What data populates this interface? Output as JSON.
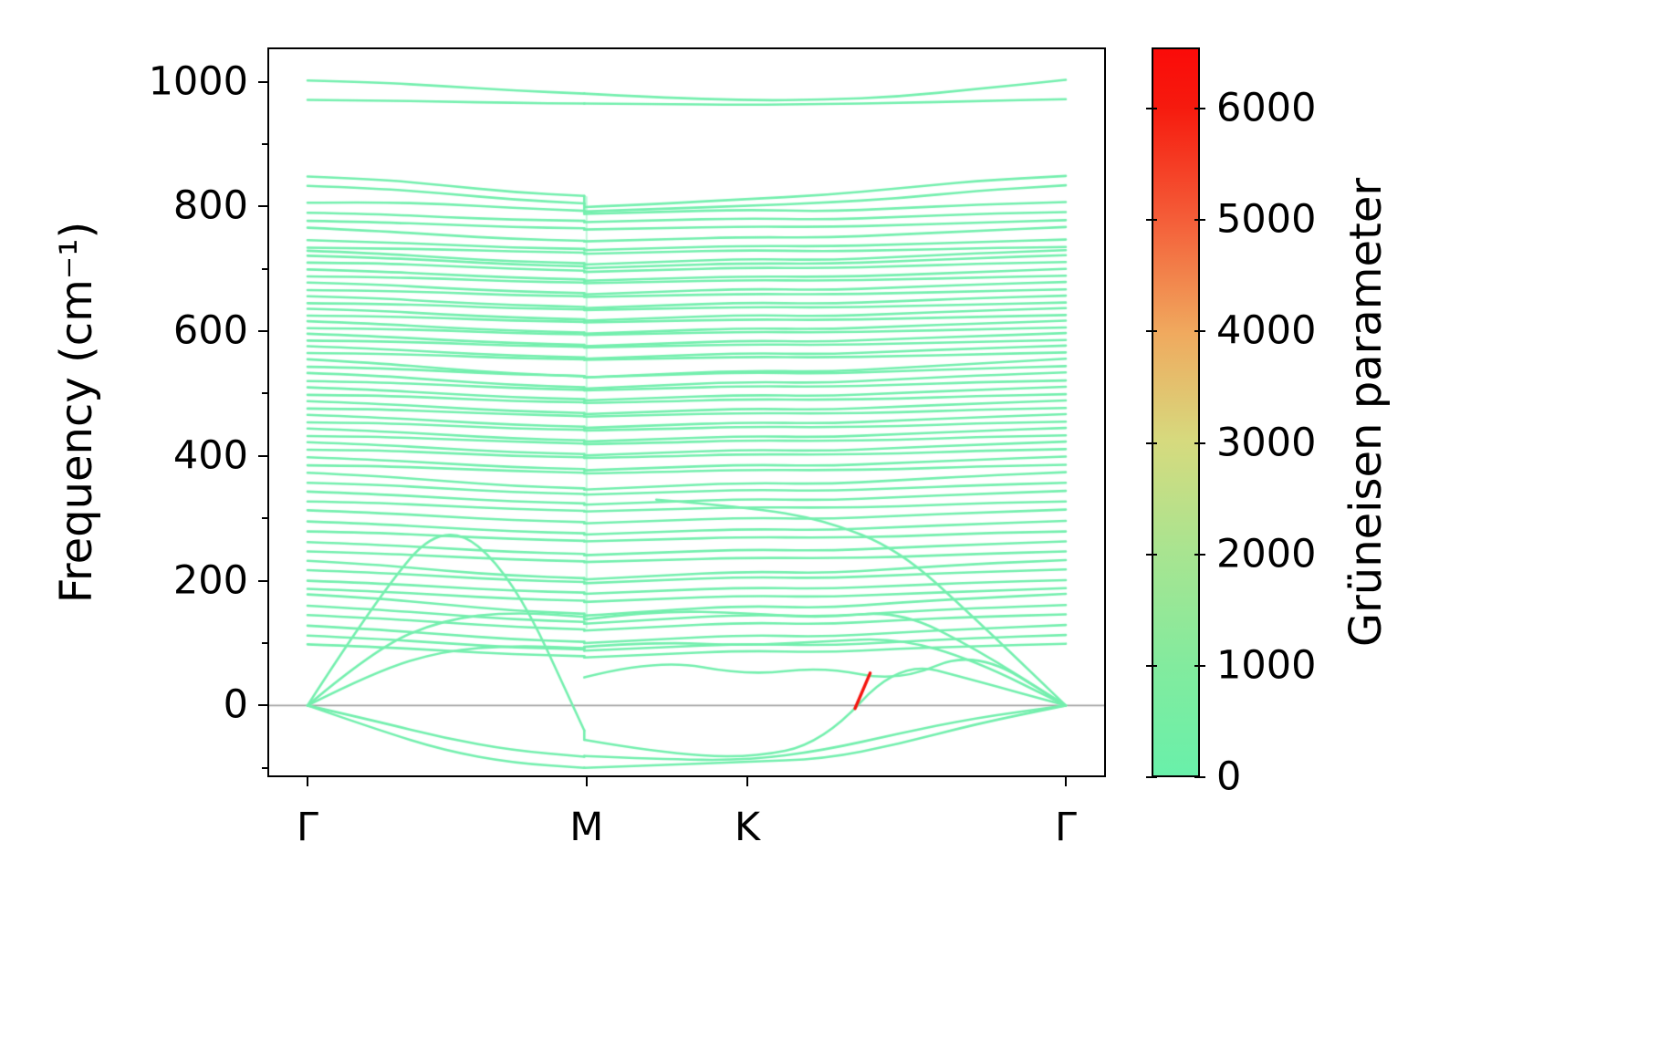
{
  "figure": {
    "ylabel": "Frequency (cm⁻¹)",
    "xlabel": ""
  },
  "chart_data": {
    "type": "line",
    "title": "",
    "description": "Phonon band structure colored by Grüneisen parameter along high-symmetry path",
    "ylabel": "Frequency (cm⁻¹)",
    "xlabel": "",
    "ylim": [
      -115,
      1055
    ],
    "grid": false,
    "zero_line": {
      "value": 0,
      "color": "#a0a0a0"
    },
    "band_color": "#74efae",
    "band_line_width": 2.6,
    "x_axis": {
      "kind": "high-symmetry-path",
      "points": [
        {
          "label": "Γ",
          "t": 0.0
        },
        {
          "label": "M",
          "t": 0.368
        },
        {
          "label": "K",
          "t": 0.58
        },
        {
          "label": "Γ",
          "t": 1.0
        }
      ]
    },
    "yticks": [
      {
        "value": 1000,
        "label": "1000"
      },
      {
        "value": 800,
        "label": "800"
      },
      {
        "value": 600,
        "label": "600"
      },
      {
        "value": 400,
        "label": "400"
      },
      {
        "value": 200,
        "label": "200"
      },
      {
        "value": 0,
        "label": "0"
      }
    ],
    "yticks_minor": [
      -100,
      100,
      300,
      500,
      700,
      900
    ],
    "colorbar": {
      "label": "Grüneisen parameter",
      "vmin": 0,
      "vmax": 6550,
      "ticks": [
        {
          "value": 0,
          "label": "0"
        },
        {
          "value": 1000,
          "label": "1000"
        },
        {
          "value": 2000,
          "label": "2000"
        },
        {
          "value": 3000,
          "label": "3000"
        },
        {
          "value": 4000,
          "label": "4000"
        },
        {
          "value": 5000,
          "label": "5000"
        },
        {
          "value": 6000,
          "label": "6000"
        }
      ],
      "gradient_stops": [
        [
          "0%",
          "#69f0aa"
        ],
        [
          "15%",
          "#82eb9e"
        ],
        [
          "31%",
          "#a9e490"
        ],
        [
          "46%",
          "#d6da7e"
        ],
        [
          "61%",
          "#f0a95e"
        ],
        [
          "76%",
          "#f4603a"
        ],
        [
          "92%",
          "#f61a0e"
        ],
        [
          "100%",
          "#fb0b09"
        ]
      ]
    },
    "highlight": {
      "x": [
        0.722,
        0.742
      ],
      "y": [
        -5,
        52
      ],
      "color": "#f5140e",
      "note": "high Grüneisen segment"
    },
    "m_discontinuity": {
      "t": 0.368,
      "y_range": [
        125,
        815
      ]
    },
    "x_samples": [
      0,
      0.09,
      0.18,
      0.27,
      0.365,
      0.365,
      0.46,
      0.58,
      0.68,
      0.78,
      0.88,
      1.0
    ],
    "bands": [
      [
        1002,
        999,
        993,
        986,
        981,
        981,
        975,
        970,
        971,
        976,
        988,
        1003
      ],
      [
        971,
        970,
        968,
        966,
        965,
        965,
        964,
        963,
        964,
        966,
        969,
        972
      ],
      [
        848,
        844,
        834,
        823,
        817,
        799,
        804,
        812,
        818,
        829,
        841,
        849
      ],
      [
        833,
        829,
        821,
        811,
        805,
        792,
        796,
        801,
        806,
        813,
        825,
        834
      ],
      [
        806,
        807,
        804,
        798,
        793,
        788,
        791,
        795,
        792,
        797,
        803,
        807
      ],
      [
        790,
        788,
        783,
        779,
        777,
        775,
        778,
        781,
        779,
        783,
        788,
        791
      ],
      [
        777,
        775,
        771,
        767,
        765,
        763,
        765,
        768,
        767,
        770,
        774,
        778
      ],
      [
        766,
        761,
        754,
        748,
        745,
        744,
        747,
        751,
        750,
        755,
        761,
        767
      ],
      [
        746,
        743,
        739,
        734,
        732,
        730,
        733,
        737,
        736,
        739,
        743,
        747
      ],
      [
        734,
        733,
        731,
        728,
        726,
        724,
        727,
        730,
        728,
        730,
        733,
        735
      ],
      [
        729,
        725,
        718,
        712,
        709,
        707,
        711,
        716,
        714,
        719,
        725,
        730
      ],
      [
        721,
        718,
        713,
        707,
        704,
        701,
        705,
        709,
        708,
        712,
        717,
        722
      ],
      [
        710,
        709,
        705,
        700,
        697,
        695,
        698,
        702,
        701,
        704,
        708,
        711
      ],
      [
        699,
        696,
        691,
        686,
        683,
        681,
        684,
        688,
        687,
        690,
        695,
        700
      ],
      [
        688,
        687,
        684,
        680,
        678,
        677,
        679,
        682,
        681,
        683,
        686,
        689
      ],
      [
        678,
        675,
        669,
        664,
        661,
        659,
        663,
        668,
        666,
        670,
        675,
        679
      ],
      [
        666,
        665,
        662,
        658,
        656,
        655,
        657,
        660,
        659,
        661,
        664,
        667
      ],
      [
        656,
        653,
        647,
        642,
        639,
        637,
        641,
        646,
        644,
        648,
        653,
        657
      ],
      [
        645,
        644,
        641,
        637,
        635,
        634,
        636,
        639,
        638,
        640,
        643,
        646
      ],
      [
        636,
        633,
        627,
        622,
        619,
        617,
        621,
        626,
        624,
        628,
        633,
        637
      ],
      [
        625,
        624,
        621,
        617,
        615,
        614,
        616,
        619,
        618,
        620,
        623,
        626
      ],
      [
        616,
        612,
        606,
        601,
        598,
        596,
        600,
        605,
        603,
        608,
        612,
        617
      ],
      [
        605,
        604,
        601,
        597,
        595,
        594,
        596,
        599,
        598,
        600,
        603,
        606
      ],
      [
        596,
        592,
        586,
        581,
        578,
        576,
        580,
        585,
        583,
        588,
        592,
        597
      ],
      [
        585,
        584,
        581,
        577,
        575,
        574,
        576,
        579,
        578,
        580,
        583,
        586
      ],
      [
        576,
        572,
        566,
        561,
        558,
        556,
        560,
        565,
        563,
        568,
        572,
        577
      ],
      [
        565,
        564,
        561,
        557,
        555,
        554,
        556,
        559,
        558,
        560,
        563,
        566
      ],
      [
        555,
        549,
        540,
        532,
        528,
        526,
        531,
        537,
        535,
        541,
        548,
        556
      ],
      [
        543,
        541,
        536,
        531,
        528,
        526,
        530,
        534,
        532,
        536,
        540,
        544
      ],
      [
        533,
        529,
        521,
        514,
        510,
        508,
        513,
        519,
        517,
        523,
        529,
        534
      ],
      [
        520,
        518,
        514,
        509,
        506,
        505,
        508,
        512,
        511,
        514,
        518,
        521
      ],
      [
        510,
        506,
        500,
        494,
        491,
        489,
        493,
        498,
        496,
        501,
        506,
        511
      ],
      [
        498,
        497,
        493,
        488,
        486,
        485,
        487,
        491,
        490,
        492,
        496,
        499
      ],
      [
        488,
        484,
        478,
        472,
        469,
        467,
        471,
        476,
        474,
        479,
        484,
        489
      ],
      [
        476,
        475,
        471,
        467,
        464,
        463,
        466,
        469,
        468,
        470,
        474,
        477
      ],
      [
        466,
        462,
        456,
        450,
        447,
        445,
        449,
        454,
        452,
        457,
        462,
        467
      ],
      [
        454,
        453,
        449,
        444,
        442,
        441,
        443,
        447,
        446,
        448,
        452,
        455
      ],
      [
        444,
        440,
        434,
        428,
        425,
        423,
        427,
        432,
        430,
        435,
        440,
        445
      ],
      [
        432,
        431,
        427,
        423,
        420,
        419,
        421,
        425,
        424,
        426,
        430,
        433
      ],
      [
        422,
        418,
        412,
        406,
        403,
        401,
        405,
        410,
        408,
        413,
        418,
        423
      ],
      [
        410,
        409,
        405,
        400,
        398,
        397,
        399,
        403,
        402,
        404,
        408,
        411
      ],
      [
        398,
        394,
        388,
        382,
        379,
        377,
        381,
        386,
        384,
        389,
        394,
        399
      ],
      [
        385,
        384,
        380,
        376,
        373,
        372,
        374,
        378,
        377,
        379,
        383,
        386
      ],
      [
        373,
        368,
        360,
        352,
        348,
        346,
        351,
        357,
        355,
        361,
        368,
        374
      ],
      [
        357,
        354,
        348,
        342,
        339,
        338,
        341,
        346,
        344,
        348,
        353,
        357
      ],
      [
        343,
        339,
        333,
        327,
        324,
        322,
        326,
        331,
        329,
        334,
        339,
        344
      ],
      [
        327,
        325,
        320,
        315,
        312,
        311,
        314,
        318,
        317,
        319,
        324,
        327
      ],
      [
        313,
        309,
        303,
        297,
        294,
        292,
        296,
        301,
        299,
        304,
        309,
        314
      ],
      [
        295,
        291,
        285,
        279,
        276,
        274,
        278,
        283,
        281,
        286,
        291,
        296
      ],
      [
        279,
        277,
        272,
        267,
        264,
        263,
        266,
        270,
        269,
        271,
        276,
        279
      ],
      [
        262,
        258,
        252,
        246,
        243,
        241,
        245,
        250,
        248,
        253,
        258,
        263
      ],
      [
        247,
        244,
        239,
        234,
        231,
        230,
        233,
        237,
        236,
        238,
        243,
        247
      ],
      [
        232,
        226,
        216,
        208,
        204,
        202,
        208,
        215,
        212,
        219,
        227,
        233
      ],
      [
        217,
        213,
        207,
        201,
        198,
        196,
        201,
        206,
        204,
        209,
        214,
        218
      ],
      [
        200,
        196,
        190,
        184,
        181,
        179,
        184,
        189,
        187,
        192,
        197,
        201
      ],
      [
        187,
        183,
        177,
        171,
        168,
        166,
        171,
        176,
        174,
        179,
        183,
        188
      ],
      [
        178,
        172,
        162,
        152,
        147,
        144,
        152,
        160,
        156,
        165,
        172,
        179
      ],
      [
        160,
        154,
        146,
        138,
        134,
        131,
        138,
        146,
        142,
        150,
        156,
        161
      ],
      [
        145,
        140,
        133,
        126,
        122,
        120,
        126,
        133,
        130,
        137,
        142,
        146
      ],
      [
        128,
        122,
        114,
        106,
        102,
        100,
        106,
        113,
        110,
        117,
        123,
        129
      ],
      [
        112,
        107,
        100,
        93,
        90,
        88,
        93,
        99,
        96,
        102,
        108,
        113
      ],
      [
        98,
        94,
        88,
        82,
        79,
        77,
        82,
        88,
        85,
        91,
        95,
        99
      ],
      [
        0,
        55,
        88,
        96,
        92,
        94,
        102,
        96,
        103,
        108,
        72,
        0
      ],
      [
        0,
        92,
        138,
        150,
        142,
        138,
        152,
        148,
        140,
        152,
        92,
        0
      ],
      [
        0,
        -38,
        -72,
        -92,
        -100,
        -100,
        -96,
        -90,
        -86,
        -62,
        -30,
        0
      ],
      [
        0,
        170,
        300,
        210,
        -40,
        -55,
        -75,
        -85,
        -60,
        72,
        40,
        0
      ],
      [
        0,
        -25,
        -52,
        -72,
        -82,
        -81,
        -86,
        -88,
        -72,
        -45,
        -20,
        0
      ],
      [
        null,
        null,
        null,
        null,
        null,
        45,
        75,
        48,
        62,
        38,
        90,
        0
      ],
      [
        null,
        null,
        null,
        null,
        null,
        null,
        330,
        318,
        298,
        250,
        140,
        0
      ]
    ]
  }
}
